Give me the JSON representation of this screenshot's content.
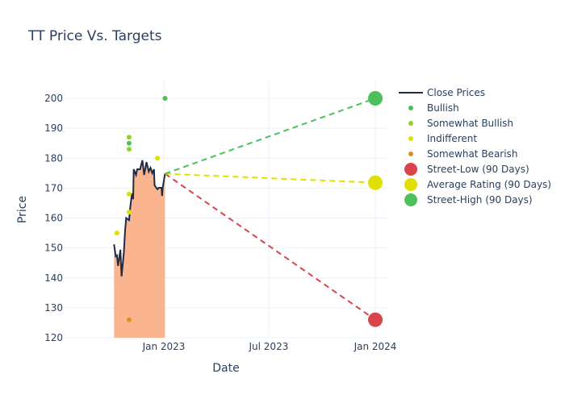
{
  "chart_data": {
    "type": "line",
    "title": "TT Price Vs. Targets",
    "xlabel": "Date",
    "ylabel": "Price",
    "ylim": [
      120,
      206
    ],
    "xlim": [
      "2022-08-20",
      "2024-01-15"
    ],
    "yticks": [
      120,
      130,
      140,
      150,
      160,
      170,
      180,
      190,
      200
    ],
    "xticks": [
      {
        "date": "2023-01-01",
        "label": "Jan 2023"
      },
      {
        "date": "2023-07-01",
        "label": "Jul 2023"
      },
      {
        "date": "2024-01-01",
        "label": "Jan 2024"
      }
    ],
    "grid": true,
    "legend_position": "right",
    "close_prices": {
      "name": "Close Prices",
      "color": "#1f2a44",
      "fill": "#f9a87a",
      "points": [
        [
          "2022-10-07",
          151.2
        ],
        [
          "2022-10-10",
          147.2
        ],
        [
          "2022-10-12",
          147.5
        ],
        [
          "2022-10-14",
          144
        ],
        [
          "2022-10-18",
          149.4
        ],
        [
          "2022-10-20",
          140.5
        ],
        [
          "2022-10-24",
          148.5
        ],
        [
          "2022-10-26",
          155.5
        ],
        [
          "2022-10-28",
          160
        ],
        [
          "2022-11-02",
          159.3
        ],
        [
          "2022-11-04",
          163.6
        ],
        [
          "2022-11-07",
          168.2
        ],
        [
          "2022-11-09",
          166.3
        ],
        [
          "2022-11-10",
          176.3
        ],
        [
          "2022-11-14",
          174.4
        ],
        [
          "2022-11-16",
          176.3
        ],
        [
          "2022-11-21",
          176.3
        ],
        [
          "2022-11-25",
          179.3
        ],
        [
          "2022-11-28",
          174.4
        ],
        [
          "2022-12-02",
          178.7
        ],
        [
          "2022-12-06",
          175.5
        ],
        [
          "2022-12-09",
          176.8
        ],
        [
          "2022-12-12",
          175
        ],
        [
          "2022-12-15",
          176.3
        ],
        [
          "2022-12-16",
          170.9
        ],
        [
          "2022-12-21",
          169.6
        ],
        [
          "2022-12-23",
          170.1
        ],
        [
          "2022-12-28",
          170.1
        ],
        [
          "2022-12-29",
          167.4
        ],
        [
          "2022-12-30",
          170.1
        ],
        [
          "2023-01-03",
          174.8
        ]
      ]
    },
    "ratings": [
      {
        "name": "Bullish",
        "color": "#4cc05a",
        "points": [
          [
            "2022-11-02",
            185
          ],
          [
            "2023-01-03",
            200
          ]
        ]
      },
      {
        "name": "Somewhat Bullish",
        "color": "#8fd42a",
        "points": [
          [
            "2022-11-02",
            187
          ],
          [
            "2022-11-02",
            183
          ]
        ]
      },
      {
        "name": "Indifferent",
        "color": "#e0e000",
        "points": [
          [
            "2022-10-12",
            155
          ],
          [
            "2022-11-02",
            162
          ],
          [
            "2022-11-02",
            168
          ],
          [
            "2022-12-21",
            180
          ]
        ]
      },
      {
        "name": "Somewhat Bearish",
        "color": "#e0901c",
        "points": [
          [
            "2022-11-02",
            126
          ]
        ]
      }
    ],
    "targets": {
      "from": [
        "2023-01-03",
        174.8
      ],
      "date": "2024-01-01",
      "series": [
        {
          "name": "Street-Low (90 Days)",
          "value": 126,
          "color": "#d9444c"
        },
        {
          "name": "Average Rating (90 Days)",
          "value": 171.8,
          "color": "#e0e000"
        },
        {
          "name": "Street-High (90 Days)",
          "value": 200,
          "color": "#4cc05a"
        }
      ]
    }
  }
}
